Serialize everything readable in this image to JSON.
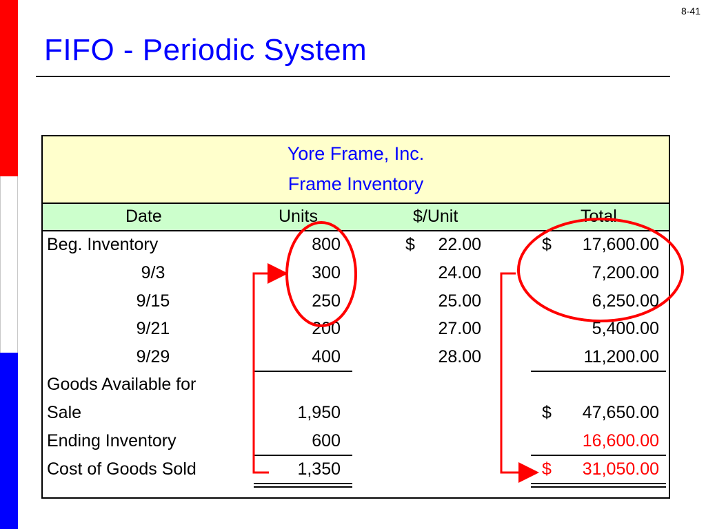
{
  "page_number": "8-41",
  "title": "FIFO - Periodic System",
  "table": {
    "company": "Yore Frame, Inc.",
    "subtitle": "Frame Inventory",
    "headers": {
      "date": "Date",
      "units": "Units",
      "unit_cost": "$/Unit",
      "total": "Total"
    },
    "rows": [
      {
        "label": "Beg. Inventory",
        "units": "800",
        "dollar_sign": "$",
        "unit_cost": "22.00",
        "total_sign": "$",
        "total": "17,600.00"
      },
      {
        "label": "9/3",
        "units": "300",
        "dollar_sign": "",
        "unit_cost": "24.00",
        "total_sign": "",
        "total": "7,200.00"
      },
      {
        "label": "9/15",
        "units": "250",
        "dollar_sign": "",
        "unit_cost": "25.00",
        "total_sign": "",
        "total": "6,250.00"
      },
      {
        "label": "9/21",
        "units": "200",
        "dollar_sign": "",
        "unit_cost": "27.00",
        "total_sign": "",
        "total": "5,400.00"
      },
      {
        "label": "9/29",
        "units": "400",
        "dollar_sign": "",
        "unit_cost": "28.00",
        "total_sign": "",
        "total": "11,200.00"
      }
    ],
    "goods_available": {
      "label_line1": "Goods Available for",
      "label_line2": "Sale",
      "units": "1,950",
      "total_sign": "$",
      "total": "47,650.00"
    },
    "ending_inventory": {
      "label": "Ending Inventory",
      "units": "600",
      "total": "16,600.00"
    },
    "cogs": {
      "label": "Cost of Goods Sold",
      "units": "1,350",
      "total_sign": "$",
      "total": "31,050.00"
    }
  },
  "colors": {
    "title": "#0000ff",
    "annotation": "#ff0000",
    "header_yellow": "#ffffcc",
    "header_green": "#ccffcc",
    "strip_red": "#ff0000",
    "strip_blue": "#0000ff"
  }
}
